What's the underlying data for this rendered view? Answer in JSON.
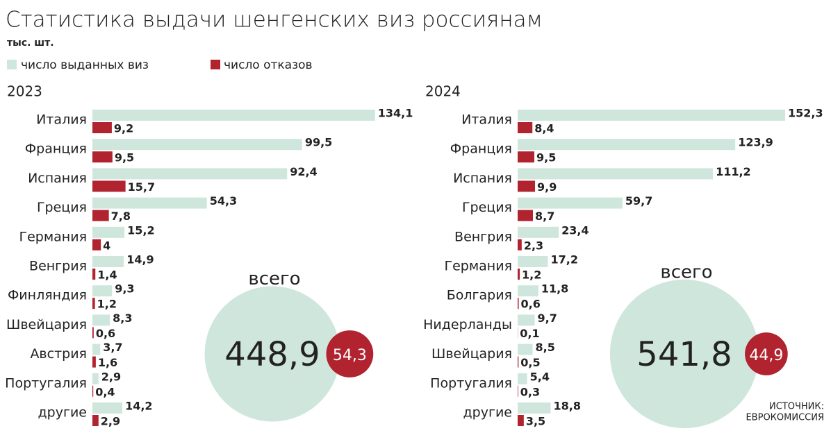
{
  "title": "Статистика выдачи шенгенских виз россиянам",
  "subtitle": "тыс. шт.",
  "source": [
    "ИСТОЧНИК:",
    "ЕВРОКОМИССИЯ"
  ],
  "chart_data": [
    {
      "type": "bar",
      "orientation": "horizontal",
      "title": "2023",
      "xlim": [
        0,
        150
      ],
      "categories": [
        "Италия",
        "Франция",
        "Испания",
        "Греция",
        "Германия",
        "Венгрия",
        "Финляндия",
        "Швейцария",
        "Австрия",
        "Португалия",
        "другие"
      ],
      "series": [
        {
          "name": "число выданных виз",
          "color": "#cfe6dd",
          "values": [
            134.1,
            99.5,
            92.4,
            54.3,
            15.2,
            14.9,
            9.3,
            8.3,
            3.7,
            2.9,
            14.2
          ],
          "value_labels": [
            "134,1",
            "99,5",
            "92,4",
            "54,3",
            "15,2",
            "14,9",
            "9,3",
            "8,3",
            "3,7",
            "2,9",
            "14,2"
          ]
        },
        {
          "name": "число отказов",
          "color": "#b0232f",
          "values": [
            9.2,
            9.5,
            15.7,
            7.8,
            4,
            1.4,
            1.2,
            0.6,
            1.6,
            0.4,
            2.9
          ],
          "value_labels": [
            "9,2",
            "9,5",
            "15,7",
            "7,8",
            "4",
            "1,4",
            "1,2",
            "0,6",
            "1,6",
            "0,4",
            "2,9"
          ]
        }
      ],
      "totals": {
        "label": "всего",
        "values": [
          448.9,
          54.3
        ],
        "value_labels": [
          "448,9",
          "54,3"
        ]
      }
    },
    {
      "type": "bar",
      "orientation": "horizontal",
      "title": "2024",
      "xlim": [
        0,
        180
      ],
      "categories": [
        "Италия",
        "Франция",
        "Испания",
        "Греция",
        "Венгрия",
        "Германия",
        "Болгария",
        "Нидерланды",
        "Швейцария",
        "Португалия",
        "другие"
      ],
      "series": [
        {
          "name": "число выданных виз",
          "color": "#cfe6dd",
          "values": [
            152.3,
            123.9,
            111.2,
            59.7,
            23.4,
            17.2,
            11.8,
            9.7,
            8.5,
            5.4,
            18.8
          ],
          "value_labels": [
            "152,3",
            "123,9",
            "111,2",
            "59,7",
            "23,4",
            "17,2",
            "11,8",
            "9,7",
            "8,5",
            "5,4",
            "18,8"
          ]
        },
        {
          "name": "число отказов",
          "color": "#b0232f",
          "values": [
            8.4,
            9.5,
            9.9,
            8.7,
            2.3,
            1.2,
            0.6,
            0.1,
            0.5,
            0.3,
            3.5
          ],
          "value_labels": [
            "8,4",
            "9,5",
            "9,9",
            "8,7",
            "2,3",
            "1,2",
            "0,6",
            "0,1",
            "0,5",
            "0,3",
            "3,5"
          ]
        }
      ],
      "totals": {
        "label": "всего",
        "values": [
          541.8,
          44.9
        ],
        "value_labels": [
          "541,8",
          "44,9"
        ]
      }
    }
  ]
}
